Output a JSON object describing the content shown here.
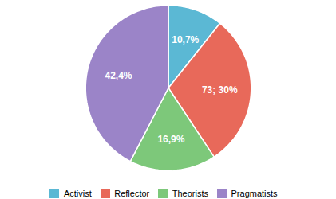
{
  "chart_data": {
    "type": "pie",
    "categories": [
      "Activist",
      "Reflector",
      "Theorists",
      "Pragmatists"
    ],
    "values": [
      10.7,
      30.0,
      16.9,
      42.4
    ],
    "value_labels": [
      "10,7%",
      "73; 30%",
      "16,9%",
      "42,4%"
    ],
    "colors": [
      "#5bb8d4",
      "#e8695a",
      "#7dc87a",
      "#9b84c8"
    ],
    "data_labels": true,
    "legend": "bottom"
  }
}
